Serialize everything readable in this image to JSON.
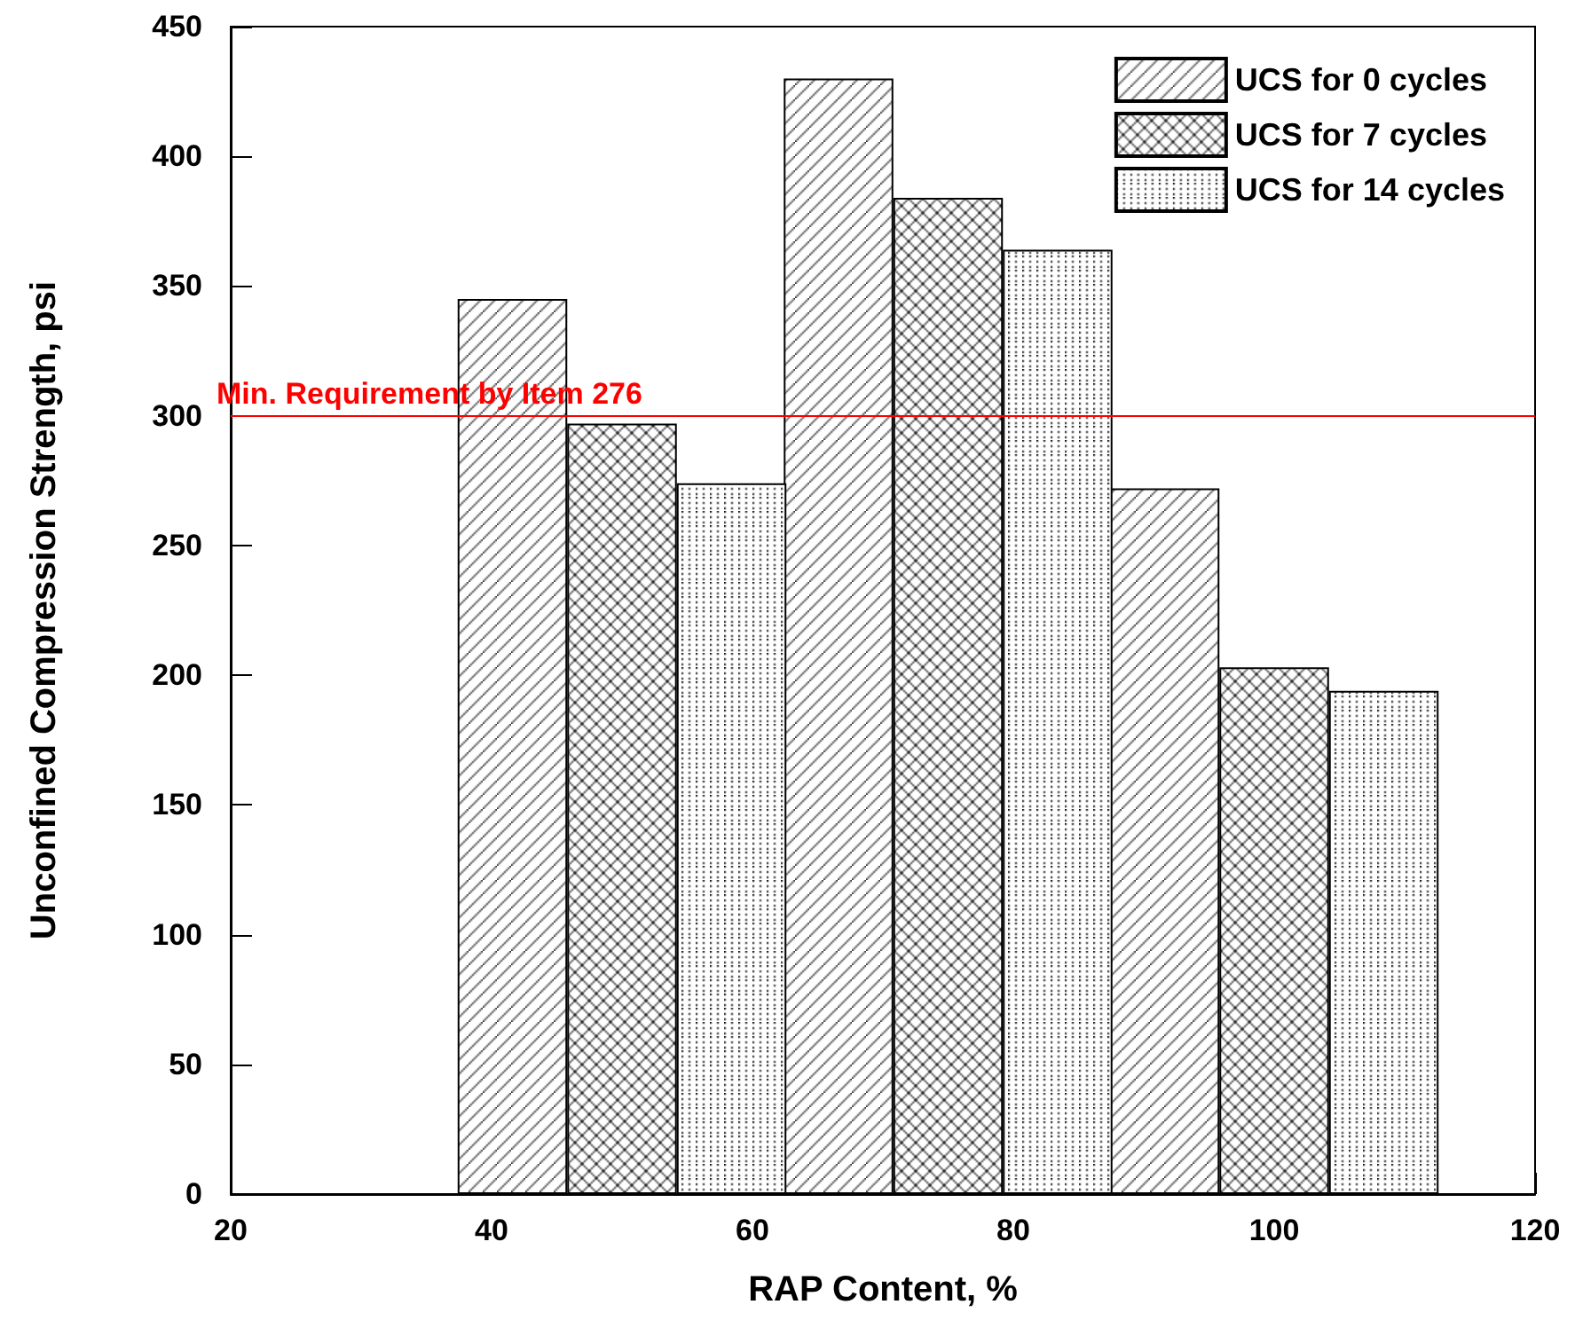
{
  "chart_data": {
    "type": "bar",
    "xlabel": "RAP Content, %",
    "ylabel": "Unconfined Compression Strength, psi",
    "xlim": [
      20,
      120
    ],
    "xticks": [
      20,
      40,
      60,
      80,
      100,
      120
    ],
    "ylim": [
      0,
      450
    ],
    "yticks": [
      0,
      50,
      100,
      150,
      200,
      250,
      300,
      350,
      400,
      450
    ],
    "grid": false,
    "legend": "top right",
    "series": [
      {
        "name": "UCS for 0 cycles",
        "color": "#000000",
        "x": [
          41.6,
          66.6,
          91.6
        ],
        "values": [
          345,
          430,
          272
        ]
      },
      {
        "name": "UCS for 7 cycles",
        "color": "#000000",
        "x": [
          50,
          75,
          100
        ],
        "values": [
          297,
          384,
          203
        ]
      },
      {
        "name": "UCS for 14 cycles",
        "color": "#000000",
        "x": [
          58.4,
          83.4,
          108.4
        ],
        "values": [
          274,
          364,
          194
        ]
      }
    ],
    "ref_lines": [
      {
        "axis": "y",
        "value": 300,
        "label": "Min. Requirement by Item 276",
        "color": "#ff0000",
        "line_style": "solid"
      }
    ]
  }
}
